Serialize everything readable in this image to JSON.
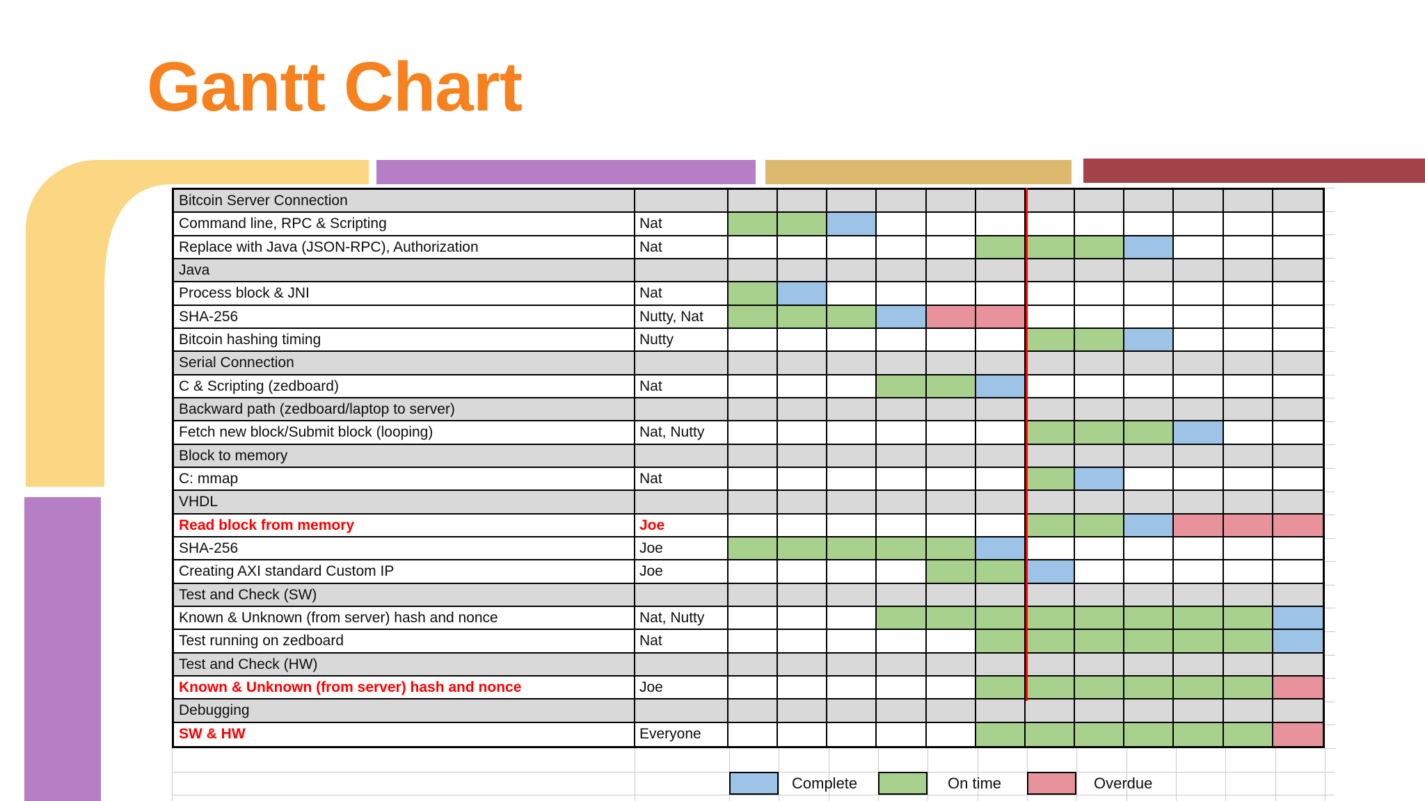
{
  "title": "Gantt Chart",
  "colors": {
    "title_orange": "#F6821F",
    "deco_yellow": "#FBD683",
    "deco_purple": "#B67EC5",
    "deco_gold": "#DCB96E",
    "deco_maroon": "#A4434A",
    "group_row_gray": "#D9D9D9",
    "now_line_red": "#FE0000",
    "cell_complete_blue": "#9DC3E6",
    "cell_on_time_green": "#A9D18E",
    "cell_overdue_red": "#E8939B"
  },
  "cell_code_meaning": {
    "g": "on_time",
    "b": "complete",
    "r": "overdue",
    "": "none"
  },
  "legend": [
    {
      "label": "Complete",
      "code": "b"
    },
    {
      "label": "On time",
      "code": "g"
    },
    {
      "label": "Overdue",
      "code": "r"
    }
  ],
  "timeline_columns": 12,
  "rows": [
    {
      "type": "group",
      "task": "Bitcoin Server Connection",
      "who": "",
      "cells": [
        "",
        "",
        "",
        "",
        "",
        "",
        "",
        "",
        "",
        "",
        "",
        ""
      ]
    },
    {
      "type": "task",
      "task": "Command line, RPC & Scripting",
      "who": "Nat",
      "cells": [
        "g",
        "g",
        "b",
        "",
        "",
        "",
        "",
        "",
        "",
        "",
        "",
        ""
      ]
    },
    {
      "type": "task",
      "task": "Replace with Java (JSON-RPC), Authorization",
      "who": "Nat",
      "cells": [
        "",
        "",
        "",
        "",
        "",
        "g",
        "g",
        "g",
        "b",
        "",
        "",
        ""
      ]
    },
    {
      "type": "group",
      "task": "Java",
      "who": "",
      "cells": [
        "",
        "",
        "",
        "",
        "",
        "",
        "",
        "",
        "",
        "",
        "",
        ""
      ]
    },
    {
      "type": "task",
      "task": "Process block & JNI",
      "who": "Nat",
      "cells": [
        "g",
        "b",
        "",
        "",
        "",
        "",
        "",
        "",
        "",
        "",
        "",
        ""
      ]
    },
    {
      "type": "task",
      "task": "SHA-256",
      "who": "Nutty, Nat",
      "cells": [
        "g",
        "g",
        "g",
        "b",
        "r",
        "r",
        "",
        "",
        "",
        "",
        "",
        ""
      ]
    },
    {
      "type": "task",
      "task": "Bitcoin hashing timing",
      "who": "Nutty",
      "cells": [
        "",
        "",
        "",
        "",
        "",
        "",
        "g",
        "g",
        "b",
        "",
        "",
        ""
      ]
    },
    {
      "type": "group",
      "task": "Serial Connection",
      "who": "",
      "cells": [
        "",
        "",
        "",
        "",
        "",
        "",
        "",
        "",
        "",
        "",
        "",
        ""
      ]
    },
    {
      "type": "task",
      "task": "C & Scripting (zedboard)",
      "who": "Nat",
      "cells": [
        "",
        "",
        "",
        "g",
        "g",
        "b",
        "",
        "",
        "",
        "",
        "",
        ""
      ]
    },
    {
      "type": "group",
      "task": "Backward path (zedboard/laptop to server)",
      "who": "",
      "cells": [
        "",
        "",
        "",
        "",
        "",
        "",
        "",
        "",
        "",
        "",
        "",
        ""
      ]
    },
    {
      "type": "task",
      "task": "Fetch new block/Submit block (looping)",
      "who": "Nat, Nutty",
      "cells": [
        "",
        "",
        "",
        "",
        "",
        "",
        "g",
        "g",
        "g",
        "b",
        "",
        ""
      ]
    },
    {
      "type": "group",
      "task": "Block to memory",
      "who": "",
      "cells": [
        "",
        "",
        "",
        "",
        "",
        "",
        "",
        "",
        "",
        "",
        "",
        ""
      ]
    },
    {
      "type": "task",
      "task": "C: mmap",
      "who": "Nat",
      "cells": [
        "",
        "",
        "",
        "",
        "",
        "",
        "g",
        "b",
        "",
        "",
        "",
        ""
      ]
    },
    {
      "type": "group",
      "task": "VHDL",
      "who": "",
      "cells": [
        "",
        "",
        "",
        "",
        "",
        "",
        "",
        "",
        "",
        "",
        "",
        ""
      ]
    },
    {
      "type": "task",
      "task": "Read block from memory",
      "who": "Joe",
      "task_red": true,
      "who_red": true,
      "cells": [
        "",
        "",
        "",
        "",
        "",
        "",
        "g",
        "g",
        "b",
        "r",
        "r",
        "r"
      ]
    },
    {
      "type": "task",
      "task": "SHA-256",
      "who": "Joe",
      "cells": [
        "g",
        "g",
        "g",
        "g",
        "g",
        "b",
        "",
        "",
        "",
        "",
        "",
        ""
      ]
    },
    {
      "type": "task",
      "task": "Creating AXI standard Custom IP",
      "who": "Joe",
      "cells": [
        "",
        "",
        "",
        "",
        "g",
        "g",
        "b",
        "",
        "",
        "",
        "",
        ""
      ]
    },
    {
      "type": "group",
      "task": "Test and Check (SW)",
      "who": "",
      "cells": [
        "",
        "",
        "",
        "",
        "",
        "",
        "",
        "",
        "",
        "",
        "",
        ""
      ]
    },
    {
      "type": "task",
      "task": "Known & Unknown (from server) hash and nonce",
      "who": "Nat, Nutty",
      "cells": [
        "",
        "",
        "",
        "g",
        "g",
        "g",
        "g",
        "g",
        "g",
        "g",
        "g",
        "b"
      ]
    },
    {
      "type": "task",
      "task": "Test running on zedboard",
      "who": "Nat",
      "cells": [
        "",
        "",
        "",
        "",
        "",
        "g",
        "g",
        "g",
        "g",
        "g",
        "g",
        "b"
      ]
    },
    {
      "type": "group",
      "task": "Test and Check (HW)",
      "who": "",
      "cells": [
        "",
        "",
        "",
        "",
        "",
        "",
        "",
        "",
        "",
        "",
        "",
        ""
      ]
    },
    {
      "type": "task",
      "task": "Known & Unknown (from server) hash and nonce",
      "who": "Joe",
      "task_red": true,
      "cells": [
        "",
        "",
        "",
        "",
        "",
        "g",
        "g",
        "g",
        "g",
        "g",
        "g",
        "r"
      ]
    },
    {
      "type": "group",
      "task": "Debugging",
      "who": "",
      "cells": [
        "",
        "",
        "",
        "",
        "",
        "",
        "",
        "",
        "",
        "",
        "",
        ""
      ]
    },
    {
      "type": "task",
      "task": "SW & HW",
      "who": "Everyone",
      "task_red": true,
      "cells": [
        "",
        "",
        "",
        "",
        "",
        "g",
        "g",
        "g",
        "g",
        "g",
        "g",
        "r"
      ]
    }
  ]
}
